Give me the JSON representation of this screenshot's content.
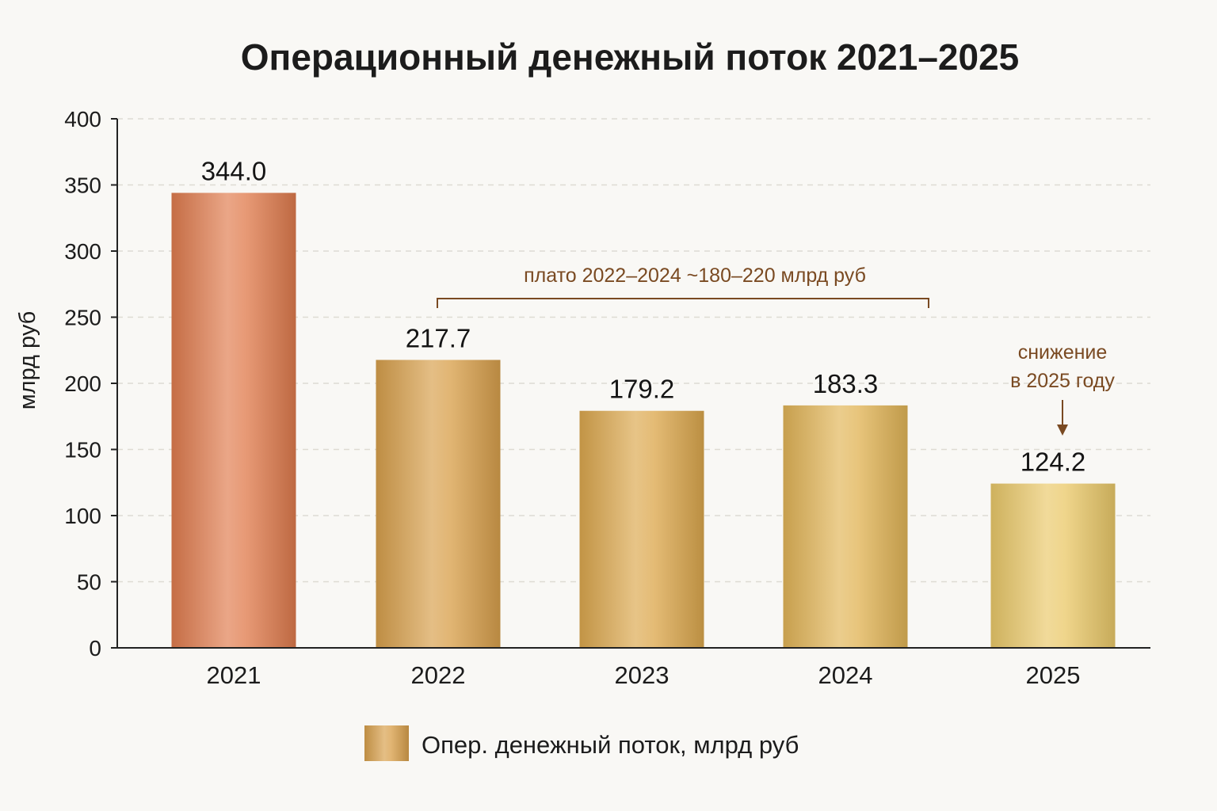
{
  "chart_data": {
    "type": "bar",
    "title": "Операционный денежный поток 2021–2025",
    "xlabel": "",
    "ylabel": "млрд руб",
    "ylim": [
      0,
      400
    ],
    "yticks": [
      0,
      50,
      100,
      150,
      200,
      250,
      300,
      350,
      400
    ],
    "grid": true,
    "categories": [
      "2021",
      "2022",
      "2023",
      "2024",
      "2025"
    ],
    "series": [
      {
        "name": "Опер. денежный поток, млрд руб",
        "values": [
          344.0,
          217.7,
          179.2,
          183.3,
          124.2
        ],
        "value_labels": [
          "344.0",
          "217.7",
          "179.2",
          "183.3",
          "124.2"
        ]
      }
    ],
    "bar_colors": [
      "#e07c4e",
      "#d8a04c",
      "#dca84e",
      "#e2b557",
      "#eac96a"
    ],
    "annotations": [
      {
        "text": "плато 2022–2024 ~180–220 млрд руб",
        "kind": "bracket",
        "from": "2022",
        "to": "2024",
        "color": "#7a4a22"
      },
      {
        "text_lines": [
          "снижение",
          "в 2025 году"
        ],
        "kind": "arrow",
        "target": "2025",
        "color": "#7a4a22"
      }
    ],
    "legend": {
      "position": "bottom-center"
    }
  }
}
